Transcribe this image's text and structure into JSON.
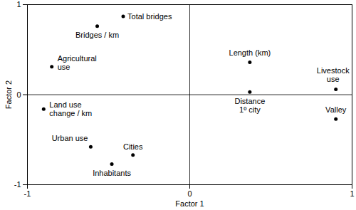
{
  "chart_data": {
    "type": "scatter",
    "xlabel": "Factor 1",
    "ylabel": "Factor 2",
    "xlim": [
      -1,
      1
    ],
    "ylim": [
      -1,
      1
    ],
    "xticks": [
      -1,
      0,
      1
    ],
    "yticks": [
      -1,
      0,
      1
    ],
    "color": "#000000",
    "points": [
      {
        "label": "Total bridges",
        "x": -0.41,
        "y": 0.87
      },
      {
        "label": "Bridges / km",
        "x": -0.57,
        "y": 0.76
      },
      {
        "label": "Agricultural\nuse",
        "x": -0.85,
        "y": 0.31
      },
      {
        "label": "Land use\nchange / km",
        "x": -0.9,
        "y": -0.16
      },
      {
        "label": "Urban use",
        "x": -0.61,
        "y": -0.58
      },
      {
        "label": "Cities",
        "x": -0.35,
        "y": -0.67
      },
      {
        "label": "Inhabitants",
        "x": -0.48,
        "y": -0.77
      },
      {
        "label": "Length (km)",
        "x": 0.37,
        "y": 0.36
      },
      {
        "label": "Distance\n1º city",
        "x": 0.37,
        "y": 0.03
      },
      {
        "label": "Livestock\nuse",
        "x": 0.9,
        "y": 0.06
      },
      {
        "label": "Valley",
        "x": 0.9,
        "y": -0.27
      }
    ]
  }
}
